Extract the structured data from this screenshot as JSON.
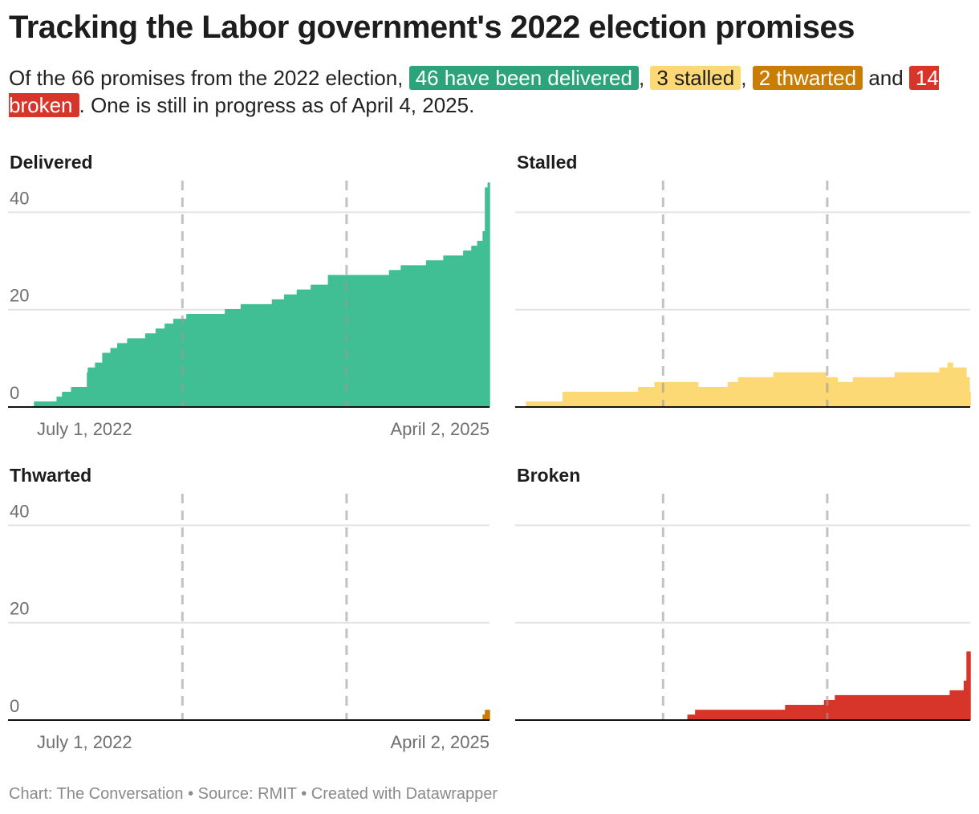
{
  "title": "Tracking the Labor government's 2022 election promises",
  "subtitle": {
    "intro": "Of the 66 promises from the 2022 election, ",
    "delivered": "46 have been delivered",
    "sep1": ", ",
    "stalled": "3 stalled",
    "sep2": ", ",
    "thwarted": "2 thwarted",
    "and": " and ",
    "broken": "14 broken",
    "outro": ". One is still in progress as of April 4, 2025."
  },
  "colors": {
    "delivered": "#3fbf93",
    "delivered_badge": "#2ca37a",
    "stalled": "#fdd975",
    "stalled_badge": "#fdd975",
    "thwarted": "#c97d02",
    "thwarted_badge": "#c97d02",
    "broken": "#d8352a",
    "broken_badge": "#d8352a"
  },
  "footer": "Chart: The Conversation • Source: RMIT • Created with Datawrapper",
  "chart_data": [
    {
      "type": "area",
      "title": "Delivered",
      "color": "#3fbf93",
      "xlim": [
        "2022-07-01",
        "2025-04-02"
      ],
      "ylim": [
        0,
        46
      ],
      "yticks": [
        "0",
        "20",
        "40"
      ],
      "xtick_labels": [
        "July 1, 2022",
        "April 2, 2025"
      ],
      "reference_lines": [
        "2023-05-24",
        "2024-05-21"
      ],
      "grid": true,
      "steps": [
        [
          "2022-07-01",
          1
        ],
        [
          "2022-08-20",
          2
        ],
        [
          "2022-09-01",
          3
        ],
        [
          "2022-09-21",
          4
        ],
        [
          "2022-10-26",
          7
        ],
        [
          "2022-10-28",
          8
        ],
        [
          "2022-11-13",
          9
        ],
        [
          "2022-11-29",
          11
        ],
        [
          "2022-12-17",
          12
        ],
        [
          "2023-01-01",
          13
        ],
        [
          "2023-01-23",
          14
        ],
        [
          "2023-03-04",
          15
        ],
        [
          "2023-03-27",
          16
        ],
        [
          "2023-04-16",
          17
        ],
        [
          "2023-05-05",
          18
        ],
        [
          "2023-06-03",
          19
        ],
        [
          "2023-08-27",
          20
        ],
        [
          "2023-10-01",
          21
        ],
        [
          "2023-12-09",
          22
        ],
        [
          "2024-01-05",
          23
        ],
        [
          "2024-02-02",
          24
        ],
        [
          "2024-03-04",
          25
        ],
        [
          "2024-04-11",
          27
        ],
        [
          "2024-08-24",
          28
        ],
        [
          "2024-09-19",
          29
        ],
        [
          "2024-11-14",
          30
        ],
        [
          "2024-12-22",
          31
        ],
        [
          "2025-02-04",
          32
        ],
        [
          "2025-02-22",
          33
        ],
        [
          "2025-03-07",
          34
        ],
        [
          "2025-03-19",
          36
        ],
        [
          "2025-03-24",
          45
        ],
        [
          "2025-03-30",
          46
        ]
      ]
    },
    {
      "type": "area",
      "title": "Stalled",
      "color": "#fdd975",
      "xlim": [
        "2022-07-01",
        "2025-04-02"
      ],
      "ylim": [
        0,
        46
      ],
      "reference_lines": [
        "2023-05-24",
        "2024-05-21"
      ],
      "grid": true,
      "steps": [
        [
          "2022-07-01",
          0
        ],
        [
          "2022-07-26",
          1
        ],
        [
          "2022-10-15",
          3
        ],
        [
          "2023-03-31",
          4
        ],
        [
          "2023-05-06",
          5
        ],
        [
          "2023-08-09",
          4
        ],
        [
          "2023-10-15",
          5
        ],
        [
          "2023-11-07",
          6
        ],
        [
          "2024-01-24",
          7
        ],
        [
          "2024-05-18",
          6
        ],
        [
          "2024-06-12",
          5
        ],
        [
          "2024-07-18",
          6
        ],
        [
          "2024-10-18",
          7
        ],
        [
          "2025-01-25",
          8
        ],
        [
          "2025-02-12",
          9
        ],
        [
          "2025-02-22",
          8
        ],
        [
          "2025-03-24",
          6
        ],
        [
          "2025-03-31",
          3
        ]
      ]
    },
    {
      "type": "area",
      "title": "Thwarted",
      "color": "#c97d02",
      "xlim": [
        "2022-07-01",
        "2025-04-02"
      ],
      "ylim": [
        0,
        46
      ],
      "yticks": [
        "0",
        "20",
        "40"
      ],
      "xtick_labels": [
        "July 1, 2022",
        "April 2, 2025"
      ],
      "reference_lines": [
        "2023-05-24",
        "2024-05-21"
      ],
      "grid": true,
      "steps": [
        [
          "2025-03-19",
          1
        ],
        [
          "2025-03-24",
          2
        ]
      ]
    },
    {
      "type": "area",
      "title": "Broken",
      "color": "#d8352a",
      "xlim": [
        "2022-07-01",
        "2025-04-02"
      ],
      "ylim": [
        0,
        46
      ],
      "reference_lines": [
        "2023-05-24",
        "2024-05-21"
      ],
      "grid": true,
      "steps": [
        [
          "2023-07-18",
          1
        ],
        [
          "2023-08-04",
          2
        ],
        [
          "2024-02-19",
          3
        ],
        [
          "2024-05-15",
          4
        ],
        [
          "2024-06-08",
          5
        ],
        [
          "2025-02-17",
          6
        ],
        [
          "2025-03-20",
          8
        ],
        [
          "2025-03-26",
          14
        ]
      ]
    }
  ]
}
